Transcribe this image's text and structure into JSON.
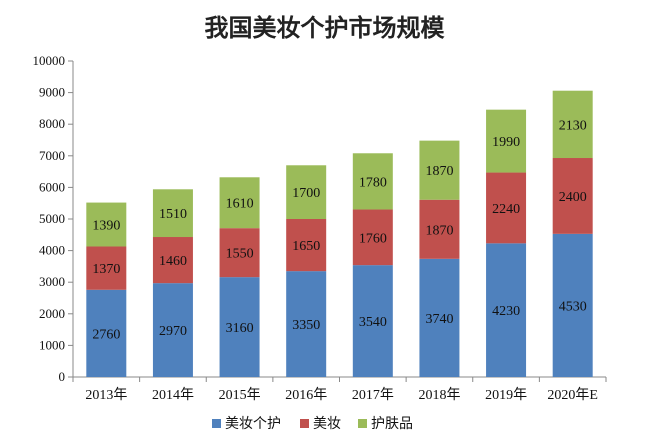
{
  "chart_data": {
    "type": "bar",
    "stacked": true,
    "title": "我国美妆个护市场规模",
    "categories": [
      "2013年",
      "2014年",
      "2015年",
      "2016年",
      "2017年",
      "2018年",
      "2019年",
      "2020年E"
    ],
    "series": [
      {
        "name": "美妆个护",
        "values": [
          2760,
          2970,
          3160,
          3350,
          3540,
          3740,
          4230,
          4530
        ],
        "color": "#4f81bd"
      },
      {
        "name": "美妆",
        "values": [
          1370,
          1460,
          1550,
          1650,
          1760,
          1870,
          2240,
          2400
        ],
        "color": "#c0504d"
      },
      {
        "name": "护肤品",
        "values": [
          1390,
          1510,
          1610,
          1700,
          1780,
          1870,
          1990,
          2130
        ],
        "color": "#9bbb59"
      }
    ],
    "ylim": [
      0,
      10000
    ],
    "yticks": [
      0,
      1000,
      2000,
      3000,
      4000,
      5000,
      6000,
      7000,
      8000,
      9000,
      10000
    ],
    "xlabel": "",
    "ylabel": "",
    "grid": false,
    "legend_position": "bottom"
  }
}
